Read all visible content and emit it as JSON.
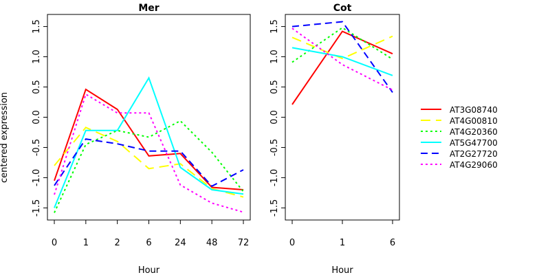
{
  "figure": {
    "ylabel": "centered expression",
    "legend": {
      "position": "right",
      "frame": false
    }
  },
  "chart_data": [
    {
      "type": "line",
      "title": "Mer",
      "xlabel": "Hour",
      "ylabel": "centered expression",
      "categories": [
        "0",
        "1",
        "2",
        "6",
        "24",
        "48",
        "72"
      ],
      "yticks": [
        "-1.5",
        "-1.0",
        "-0.5",
        "0.0",
        "0.5",
        "1.0",
        "1.5"
      ],
      "ylim": [
        -1.7,
        1.7
      ],
      "grid": false,
      "series": [
        {
          "name": "AT3G08740",
          "color": "#ff0000",
          "dash": "solid",
          "values": [
            -1.05,
            0.46,
            0.13,
            -0.64,
            -0.6,
            -1.16,
            -1.2
          ]
        },
        {
          "name": "AT4G00810",
          "color": "#ffff00",
          "dash": "longdash",
          "values": [
            -0.8,
            -0.17,
            -0.4,
            -0.85,
            -0.77,
            -1.18,
            -1.32
          ]
        },
        {
          "name": "AT4G20360",
          "color": "#00ff00",
          "dash": "dotted",
          "values": [
            -1.58,
            -0.45,
            -0.22,
            -0.33,
            -0.06,
            -0.58,
            -1.23
          ]
        },
        {
          "name": "AT5G47700",
          "color": "#00ffff",
          "dash": "solid",
          "values": [
            -1.5,
            -0.22,
            -0.22,
            0.65,
            -0.83,
            -1.2,
            -1.27
          ]
        },
        {
          "name": "AT2G27720",
          "color": "#0000ff",
          "dash": "dashed",
          "values": [
            -1.13,
            -0.36,
            -0.44,
            -0.56,
            -0.56,
            -1.14,
            -0.87
          ]
        },
        {
          "name": "AT4G29060",
          "color": "#ff00ff",
          "dash": "dotted",
          "values": [
            -1.28,
            0.38,
            0.07,
            0.07,
            -1.12,
            -1.42,
            -1.57
          ]
        }
      ]
    },
    {
      "type": "line",
      "title": "Cot",
      "xlabel": "Hour",
      "ylabel": "",
      "categories": [
        "0",
        "1",
        "6"
      ],
      "yticks": [
        "-1.5",
        "-1.0",
        "-0.5",
        "0.0",
        "0.5",
        "1.0",
        "1.5"
      ],
      "ylim": [
        -1.7,
        1.7
      ],
      "grid": false,
      "series": [
        {
          "name": "AT3G08740",
          "color": "#ff0000",
          "dash": "solid",
          "values": [
            0.21,
            1.42,
            1.05
          ]
        },
        {
          "name": "AT4G00810",
          "color": "#ffff00",
          "dash": "longdash",
          "values": [
            1.32,
            0.97,
            1.34
          ]
        },
        {
          "name": "AT4G20360",
          "color": "#00ff00",
          "dash": "dotted",
          "values": [
            0.91,
            1.48,
            0.96
          ]
        },
        {
          "name": "AT5G47700",
          "color": "#00ffff",
          "dash": "solid",
          "values": [
            1.15,
            1.0,
            0.69
          ]
        },
        {
          "name": "AT2G27720",
          "color": "#0000ff",
          "dash": "dashed",
          "values": [
            1.5,
            1.58,
            0.41
          ]
        },
        {
          "name": "AT4G29060",
          "color": "#ff00ff",
          "dash": "dotted",
          "values": [
            1.47,
            0.87,
            0.45
          ]
        }
      ]
    }
  ]
}
